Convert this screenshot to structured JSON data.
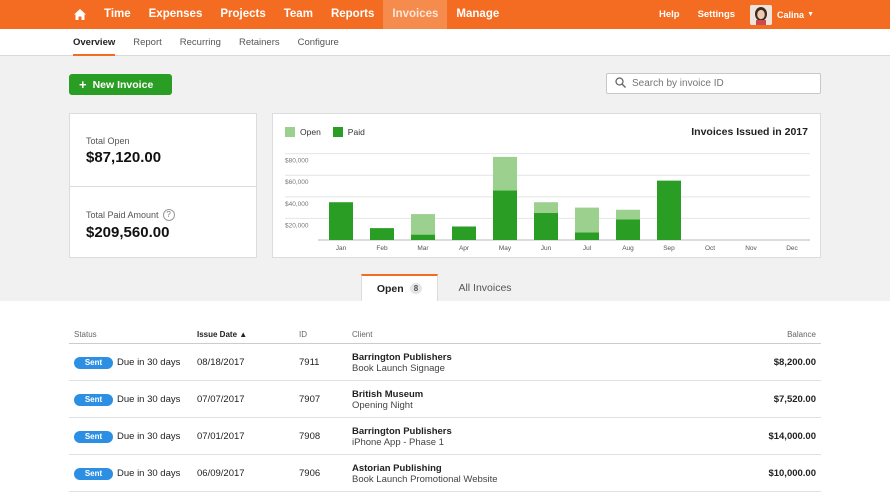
{
  "nav": {
    "items": [
      "Time",
      "Expenses",
      "Projects",
      "Team",
      "Reports",
      "Invoices",
      "Manage"
    ],
    "active": "Invoices",
    "help": "Help",
    "settings": "Settings",
    "user": "Calina",
    "color": "#f36c21"
  },
  "subnav": {
    "items": [
      "Overview",
      "Report",
      "Recurring",
      "Retainers",
      "Configure"
    ],
    "active": "Overview"
  },
  "actions": {
    "new_invoice": "New Invoice",
    "search_placeholder": "Search by invoice ID"
  },
  "summary": {
    "total_open_label": "Total Open",
    "total_open_value": "$87,120.00",
    "total_paid_label": "Total Paid Amount",
    "total_paid_value": "$209,560.00"
  },
  "chart_data": {
    "type": "bar",
    "stacked": true,
    "title": "Invoices Issued in 2017",
    "categories": [
      "Jan",
      "Feb",
      "Mar",
      "Apr",
      "May",
      "Jun",
      "Jul",
      "Aug",
      "Sep",
      "Oct",
      "Nov",
      "Dec"
    ],
    "series": [
      {
        "name": "Paid",
        "color": "#2a9d24",
        "values": [
          35000,
          11000,
          5000,
          12500,
          46000,
          25000,
          7000,
          19000,
          55000,
          0,
          0,
          0
        ]
      },
      {
        "name": "Open",
        "color": "#9bd08f",
        "values": [
          0,
          0,
          19000,
          0,
          31000,
          10000,
          23000,
          9000,
          0,
          0,
          0,
          0
        ]
      }
    ],
    "yticks": [
      "$80,000",
      "$60,000",
      "$40,000",
      "$20,000"
    ],
    "ylim": [
      0,
      88000
    ],
    "legend": "top-left",
    "grid": true
  },
  "tabs": {
    "open_label": "Open",
    "open_count": "8",
    "all_label": "All Invoices"
  },
  "table": {
    "headers": {
      "status": "Status",
      "issue_date": "Issue Date ▲",
      "id": "ID",
      "client": "Client",
      "balance": "Balance"
    },
    "rows": [
      {
        "status": "Sent",
        "due": "Due in 30 days",
        "date": "08/18/2017",
        "id": "7911",
        "client": "Barrington Publishers",
        "project": "Book Launch Signage",
        "balance": "$8,200.00"
      },
      {
        "status": "Sent",
        "due": "Due in 30 days",
        "date": "07/07/2017",
        "id": "7907",
        "client": "British Museum",
        "project": "Opening Night",
        "balance": "$7,520.00"
      },
      {
        "status": "Sent",
        "due": "Due in 30 days",
        "date": "07/01/2017",
        "id": "7908",
        "client": "Barrington Publishers",
        "project": "iPhone App - Phase 1",
        "balance": "$14,000.00"
      },
      {
        "status": "Sent",
        "due": "Due in 30 days",
        "date": "06/09/2017",
        "id": "7906",
        "client": "Astorian Publishing",
        "project": "Book Launch Promotional Website",
        "balance": "$10,000.00"
      }
    ]
  }
}
